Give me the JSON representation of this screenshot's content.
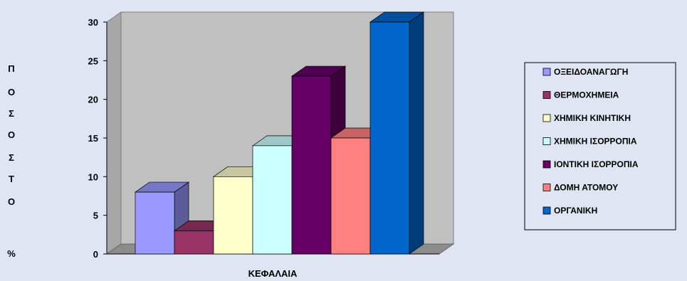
{
  "chart_data": {
    "type": "bar",
    "style": "3d-column",
    "categories": [
      "ΟΞΕΙΔΟΑΝΑΓΩΓΗ",
      "ΘΕΡΜΟΧΗΜΕΙΑ",
      "ΧΗΜΙΚΗ ΚΙΝΗΤΙΚΗ",
      "ΧΗΜΙΚΗ ΙΣΟΡΡΟΠΙΑ",
      "ΙΟΝΤΙΚΗ ΙΣΟΡΡΟΠΙΑ",
      "ΔΟΜΗ ΑΤΟΜΟΥ",
      "ΟΡΓΑΝΙΚΗ"
    ],
    "values": [
      8,
      3,
      10,
      14,
      23,
      15,
      30
    ],
    "colors": [
      "#9999ff",
      "#993366",
      "#ffffcc",
      "#ccffff",
      "#660066",
      "#ff8080",
      "#0066cc"
    ],
    "xlabel": "ΚΕΦΑΛΑΙΑ",
    "ylabel": "ΠΟΣΟΣΤΟ %",
    "ylabel_chars": [
      "Π",
      "Ο",
      "Σ",
      "Ο",
      "Σ",
      "Τ",
      "Ο",
      "",
      "%"
    ],
    "ylim": [
      0,
      30
    ],
    "yticks": [
      0,
      5,
      10,
      15,
      20,
      25,
      30
    ],
    "grid": false,
    "legend": "right"
  }
}
